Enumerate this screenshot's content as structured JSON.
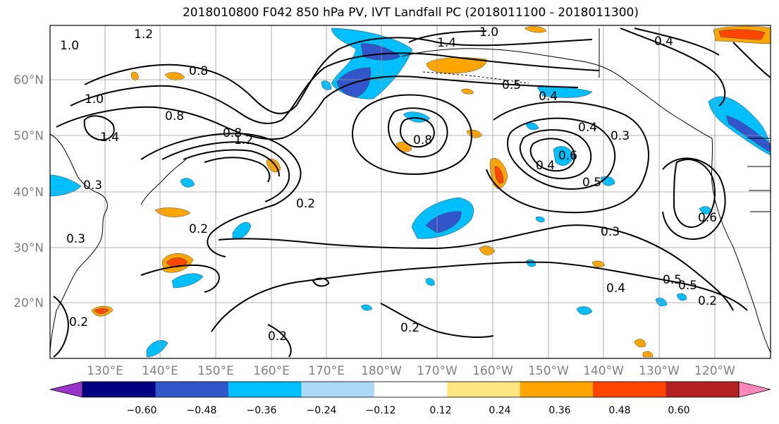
{
  "title": "2018010800 F042 850 hPa PV, IVT Landfall PC (2018011100 - 2018011300)",
  "map": {
    "lat_labels": [
      "60°N",
      "50°N",
      "40°N",
      "30°N",
      "20°N"
    ],
    "lon_labels": [
      "130°E",
      "140°E",
      "150°E",
      "160°E",
      "170°E",
      "180°W",
      "170°W",
      "160°W",
      "150°W",
      "140°W",
      "130°W",
      "120°W"
    ],
    "contour_labels": [
      "1.2",
      "1.0",
      "1.4",
      "1.0",
      "0.4",
      "0.8",
      "0.5",
      "1.0",
      "0.4",
      "0.8",
      "1.4",
      "0.8",
      "0.8",
      "1.2",
      "0.3",
      "0.2",
      "0.4",
      "0.4",
      "0.3",
      "0.6",
      "0.5",
      "0.3",
      "0.2",
      "0.4",
      "0.5",
      "0.2",
      "0.2",
      "0.2",
      "0.3",
      "0.2",
      "0.6",
      "0.5"
    ]
  },
  "colorbar": {
    "tick_labels": [
      "−0.60",
      "−0.48",
      "−0.36",
      "−0.24",
      "−0.12",
      "0.12",
      "0.24",
      "0.36",
      "0.48",
      "0.60"
    ],
    "colors": [
      "#9933cc",
      "#000080",
      "#3355cc",
      "#00bfff",
      "#add8f5",
      "#ffffff",
      "#ffe680",
      "#ffa500",
      "#ff4500",
      "#b22222",
      "#ff88bb"
    ]
  }
}
